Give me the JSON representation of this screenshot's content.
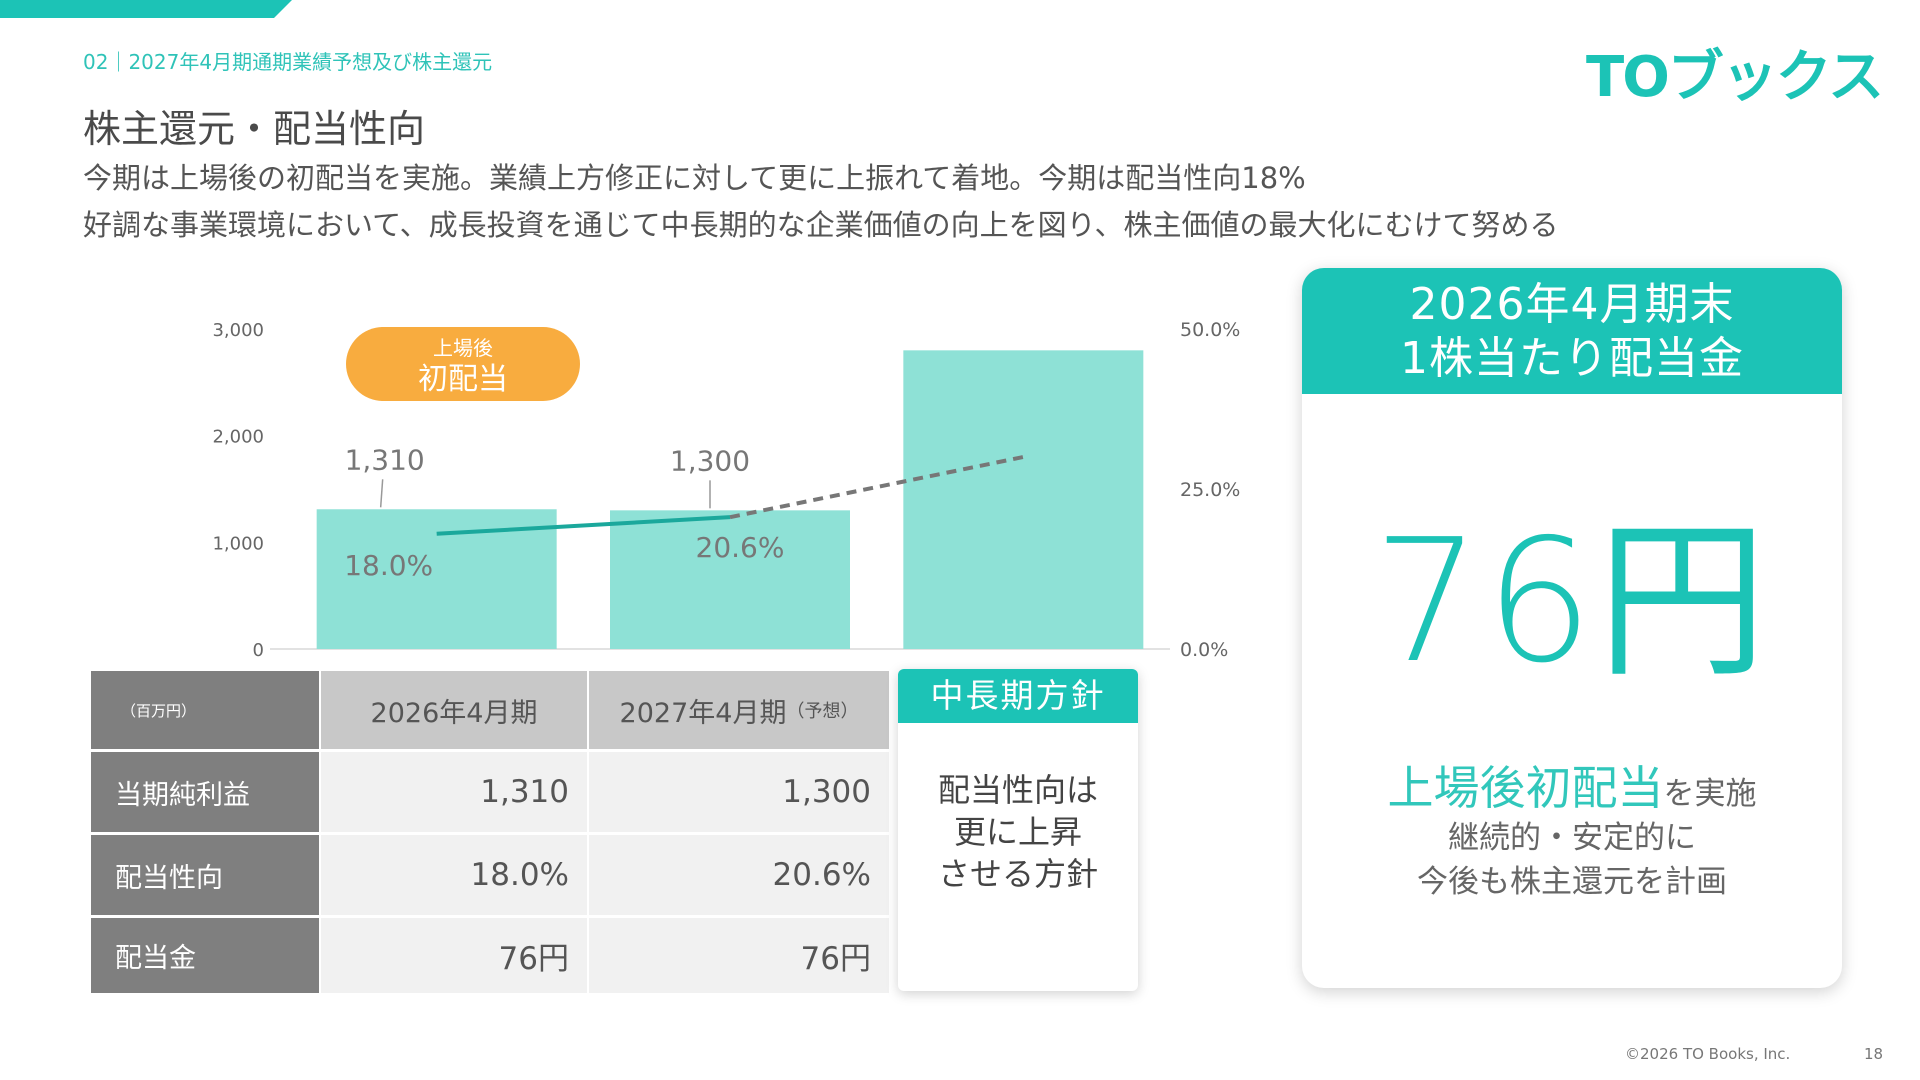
{
  "header": {
    "section_label": "02｜2027年4月期通期業績予想及び株主還元",
    "logo_text": "TOブックス",
    "title": "株主還元・配当性向",
    "subtitle_lines": [
      "今期は上場後の初配当を実施。業績上方修正に対して更に上振れて着地。今期は配当性向18%",
      "好調な事業環境において、成長投資を通じて中長期的な企業価値の向上を図り、株主価値の最大化にむけて努める"
    ]
  },
  "chart_data": {
    "type": "bar",
    "categories": [
      "2026年4月期",
      "2027年4月期",
      ""
    ],
    "series": [
      {
        "values": [
          1310,
          1300,
          2800
        ],
        "color": "#8ee1d6"
      }
    ],
    "line_series": {
      "values": [
        18.0,
        20.6,
        30.0
      ],
      "axis": "right",
      "color": "#1ba89c",
      "forecast_color": "#777777",
      "forecast_from_index": 1
    },
    "bar_labels": [
      "1,310",
      "1,300",
      ""
    ],
    "line_labels": [
      "18.0%",
      "20.6%",
      ""
    ],
    "ylim": [
      0,
      3000
    ],
    "y_ticks": [
      "0",
      "1,000",
      "2,000",
      "3,000"
    ],
    "y2lim": [
      0,
      50
    ],
    "y2_ticks": [
      "0.0%",
      "25.0%",
      "50.0%"
    ],
    "badge": {
      "line1": "上場後",
      "line2": "初配当",
      "color": "#f8ac3f"
    }
  },
  "table": {
    "unit": "（百万円）",
    "col1": "2026年4月期",
    "col2": "2027年4月期",
    "col2_note": "（予想）",
    "rows": [
      {
        "label": "当期純利益",
        "v1": "1,310",
        "v2": "1,300"
      },
      {
        "label": "配当性向",
        "v1": "18.0%",
        "v2": "20.6%"
      },
      {
        "label": "配当金",
        "v1": "76円",
        "v2": "76円"
      }
    ]
  },
  "policy": {
    "title": "中長期方針",
    "lines": [
      "配当性向は",
      "更に上昇",
      "させる方針"
    ]
  },
  "dividend": {
    "title_line1": "2026年4月期末",
    "title_line2": "1株当たり配当金",
    "amount": "76円",
    "highlight": "上場後初配当",
    "highlight_suffix": "を実施",
    "line2": "継続的・安定的に",
    "line3": "今後も株主還元を計画"
  },
  "footer": {
    "copyright": "©2026  TO Books, Inc.",
    "page": "18"
  },
  "colors": {
    "accent": "#1cc3b6",
    "bar": "#8ee1d6",
    "badge": "#f8ac3f"
  }
}
